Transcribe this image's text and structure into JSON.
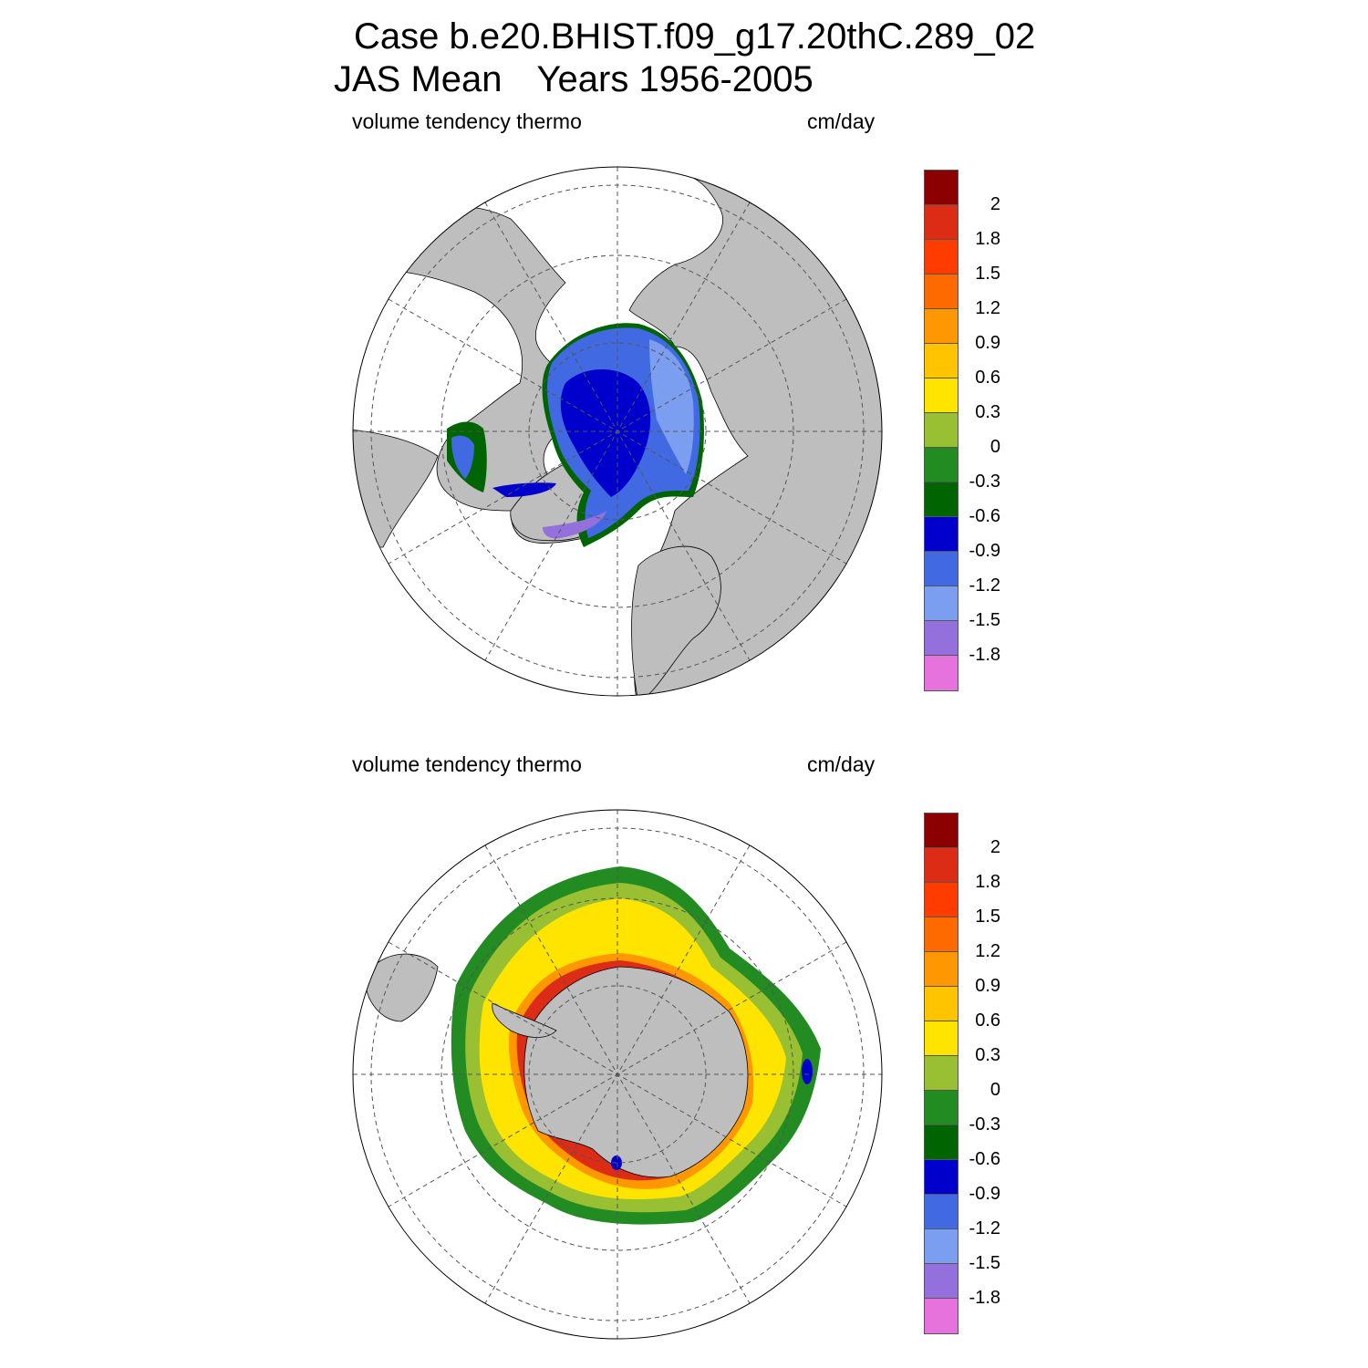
{
  "title": {
    "line1": "Case b.e20.BHIST.f09_g17.20thC.289_02",
    "season": "JAS Mean",
    "years": "Years 1956-2005"
  },
  "panels": [
    {
      "hemisphere": "north",
      "variable_label": "volume tendency thermo",
      "units_label": "cm/day"
    },
    {
      "hemisphere": "south",
      "variable_label": "volume tendency thermo",
      "units_label": "cm/day"
    }
  ],
  "colorbar": {
    "labels": [
      "2",
      "1.8",
      "1.5",
      "1.2",
      "0.9",
      "0.6",
      "0.3",
      "0",
      "-0.3",
      "-0.6",
      "-0.9",
      "-1.2",
      "-1.5",
      "-1.8"
    ],
    "colors_top_to_bottom": [
      "#8b0000",
      "#dd2c16",
      "#ff3c00",
      "#ff6a00",
      "#ff9800",
      "#ffc400",
      "#ffe400",
      "#99bf33",
      "#228b22",
      "#006400",
      "#0000cd",
      "#4169e1",
      "#7b9ef0",
      "#9370db",
      "#e673dd"
    ]
  },
  "map_colors": {
    "land": "#bebebe",
    "ocean": "#ffffff",
    "graticule": "#555555"
  }
}
